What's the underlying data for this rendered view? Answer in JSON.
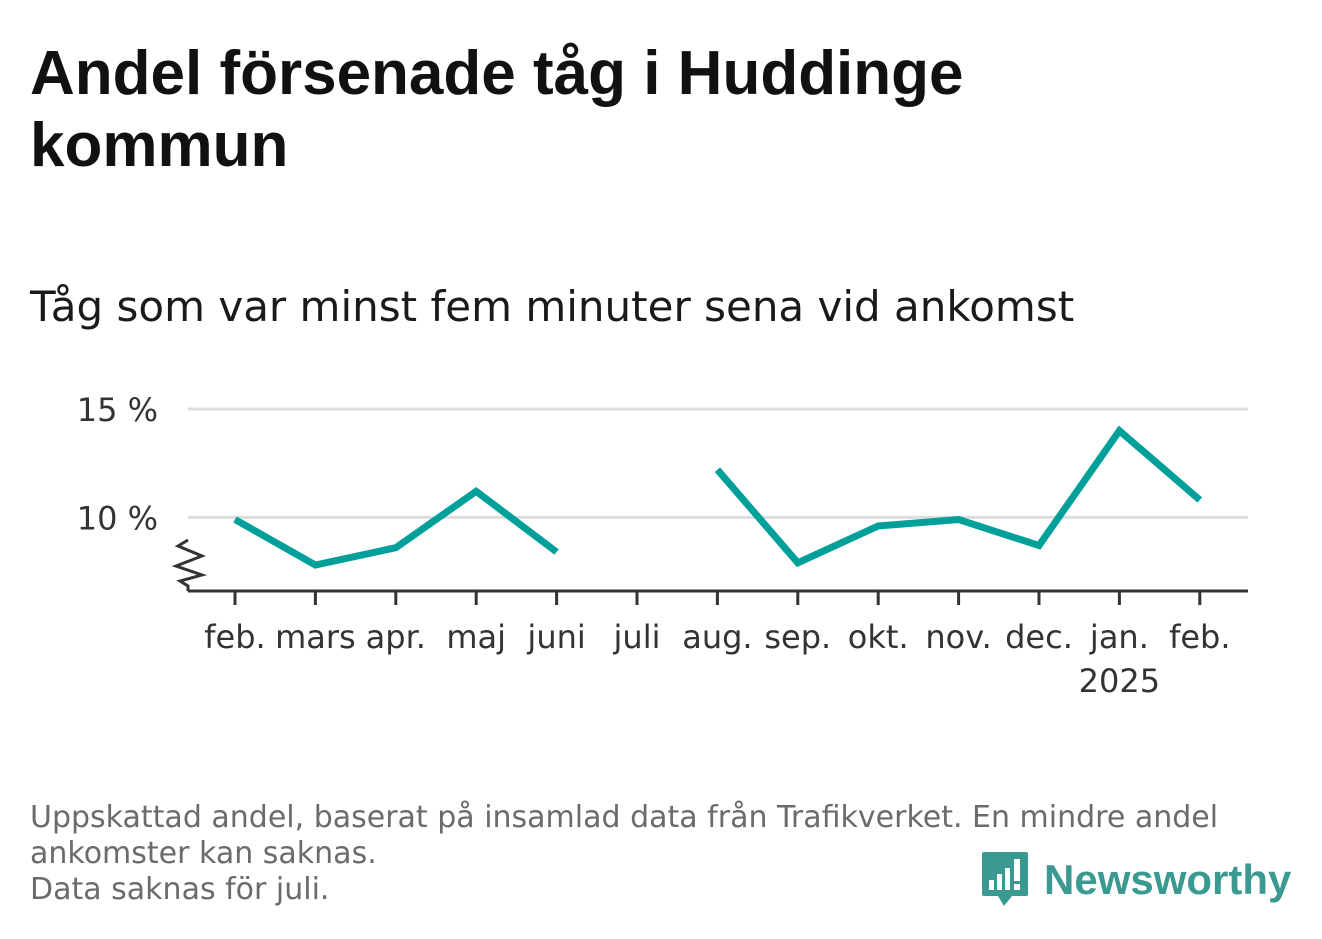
{
  "title": "Andel försenade tåg i Huddinge kommun",
  "subtitle": "Tåg som var minst fem minuter sena vid ankomst",
  "footer": {
    "note_line1": "Uppskattad andel, baserat på insamlad data från Trafikverket. En mindre andel",
    "note_line2": "ankomster kan saknas.",
    "note_line3": "Data saknas för juli."
  },
  "brand": {
    "name": "Newsworthy",
    "icon": "newsworthy-logo-icon",
    "color": "#3a9a91"
  },
  "chart_data": {
    "type": "line",
    "categories": [
      "feb.",
      "mars",
      "apr.",
      "maj",
      "juni",
      "juli",
      "aug.",
      "sep.",
      "okt.",
      "nov.",
      "dec.",
      "jan.",
      "feb."
    ],
    "year_labels": [
      {
        "index": 11,
        "label": "2025"
      }
    ],
    "series": [
      {
        "values": [
          9.9,
          7.8,
          8.6,
          11.2,
          8.4,
          null,
          12.2,
          7.9,
          9.6,
          9.9,
          8.7,
          14.0,
          10.8
        ],
        "color": "#00a09a"
      }
    ],
    "y_ticks": [
      {
        "value": 10,
        "label": "10 %"
      },
      {
        "value": 15,
        "label": "15 %"
      }
    ],
    "ylim": [
      6.6,
      15
    ],
    "y_axis_break": true,
    "grid": true,
    "missing": [
      "juli"
    ]
  }
}
